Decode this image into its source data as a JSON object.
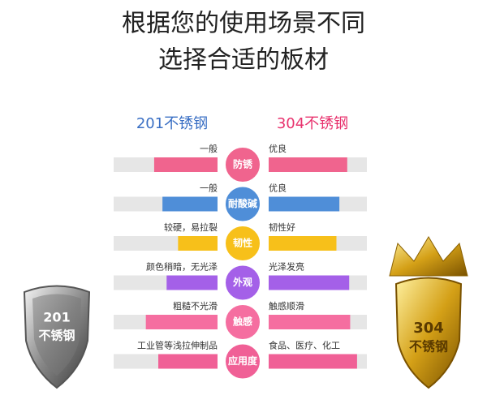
{
  "title": [
    "根据您的使用场景不同",
    "选择合适的板材"
  ],
  "columns": [
    {
      "name": "201不锈钢",
      "color": "#3a6fc4"
    },
    {
      "name": "304不锈钢",
      "color": "#e8336e"
    }
  ],
  "rows": [
    {
      "feature": "防锈",
      "color": "#f0648e",
      "left": {
        "label": "一般",
        "level": 61
      },
      "right": {
        "label": "优良",
        "level": 80
      }
    },
    {
      "feature": "耐酸碱",
      "color": "#4f8ed8",
      "left": {
        "label": "一般",
        "level": 53
      },
      "right": {
        "label": "优良",
        "level": 72
      }
    },
    {
      "feature": "韧性",
      "color": "#f7c01a",
      "left": {
        "label": "较硬，易拉裂",
        "level": 38
      },
      "right": {
        "label": "韧性好",
        "level": 69
      }
    },
    {
      "feature": "外观",
      "color": "#a460e8",
      "left": {
        "label": "颜色稍暗，无光泽",
        "level": 49
      },
      "right": {
        "label": "光泽发亮",
        "level": 82
      }
    },
    {
      "feature": "触感",
      "color": "#f56ea0",
      "left": {
        "label": "粗糙不光滑",
        "level": 69
      },
      "right": {
        "label": "触感顺滑",
        "level": 83
      }
    },
    {
      "feature": "应用度",
      "color": "#f06096",
      "left": {
        "label": "工业管等浅拉伸制品",
        "level": 57
      },
      "right": {
        "label": "食品、医疗、化工",
        "level": 90
      }
    }
  ],
  "badges": [
    {
      "number": "201",
      "text": "不锈钢"
    },
    {
      "number": "304",
      "text": "不锈钢"
    }
  ]
}
